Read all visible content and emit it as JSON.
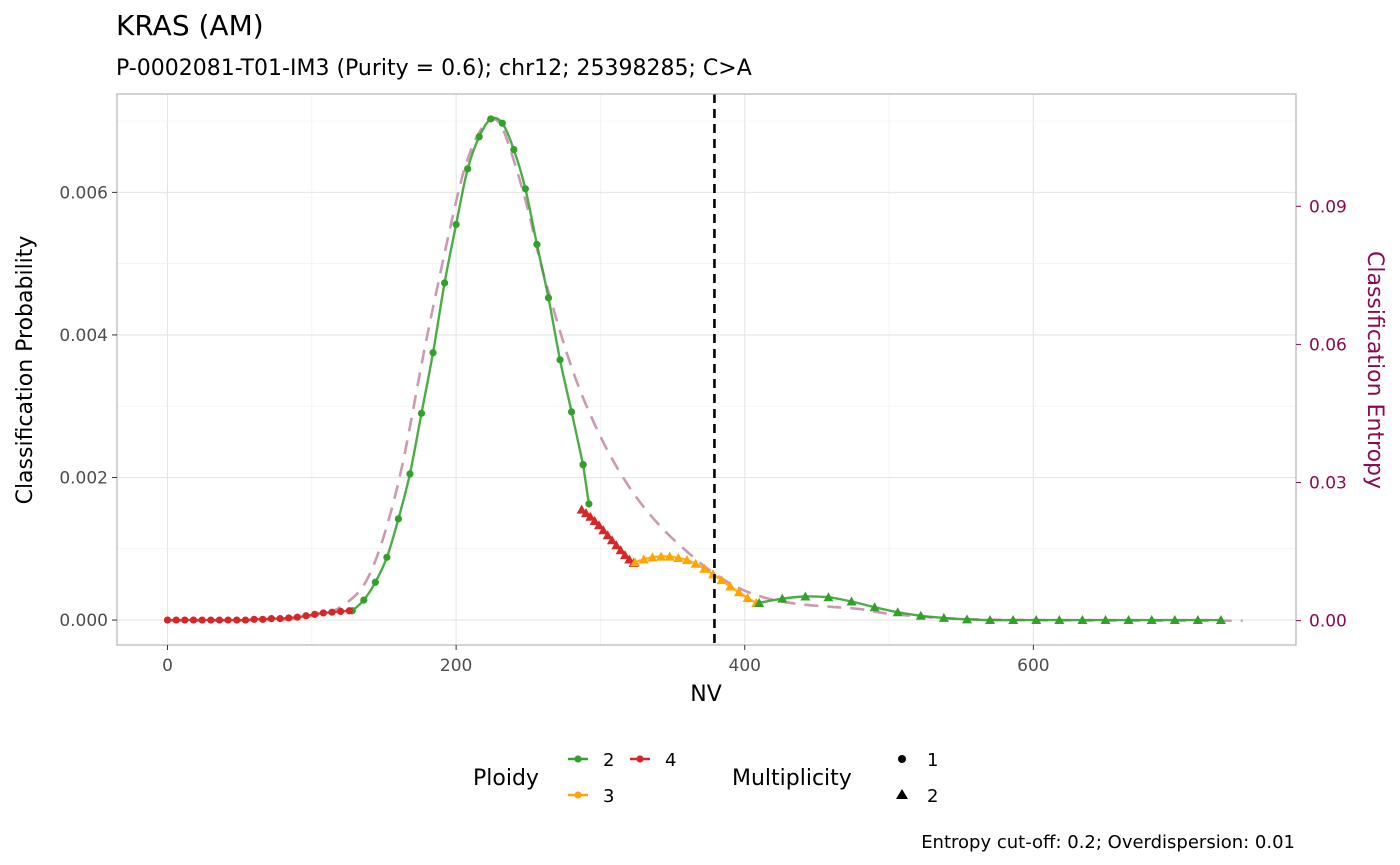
{
  "chart_data": {
    "type": "line",
    "title": "KRAS (AM)",
    "subtitle": "P-0002081-T01-IM3 (Purity = 0.6); chr12; 25398285; C>A",
    "xlabel": "NV",
    "ylabel": "Classification Probability",
    "y2label": "Classification Entropy",
    "caption": "Entropy cut-off: 0.2; Overdispersion: 0.01",
    "xlim": [
      -35,
      782
    ],
    "ylim": [
      -0.00035,
      0.00738
    ],
    "y2lim": [
      -0.0053,
      0.1144
    ],
    "x_ticks": [
      0,
      200,
      400,
      600
    ],
    "y_ticks": [
      0.0,
      0.002,
      0.004,
      0.006
    ],
    "y_tick_labels": [
      "0.000",
      "0.002",
      "0.004",
      "0.006"
    ],
    "y2_ticks": [
      0.0,
      0.03,
      0.06,
      0.09
    ],
    "y2_tick_labels": [
      "0.00",
      "0.03",
      "0.06",
      "0.09"
    ],
    "grid": true,
    "legend_position": "bottom",
    "cutoff_line": {
      "x": 379,
      "style": "dashed",
      "color": "#000000"
    },
    "colors": {
      "2": "#33a02c",
      "3": "#ffa500",
      "4": "#d62728",
      "entropy": "#cc99b3"
    },
    "legend": {
      "ploidy": {
        "title": "Ploidy",
        "items": [
          "2",
          "3",
          "4"
        ]
      },
      "multiplicity": {
        "title": "Multiplicity",
        "items": [
          "1",
          "2"
        ]
      }
    },
    "series": [
      {
        "name": "Ploidy 2, Multiplicity 1",
        "ploidy": "2",
        "multiplicity": "1",
        "shape": "circle",
        "x": [
          128,
          136,
          144,
          152,
          160,
          168,
          176,
          184,
          192,
          200,
          208,
          216,
          224,
          232,
          240,
          248,
          256,
          264,
          272,
          280,
          288
        ],
        "y": [
          0.00013,
          0.00028,
          0.00053,
          0.00088,
          0.00142,
          0.00205,
          0.0029,
          0.00375,
          0.00473,
          0.00555,
          0.00633,
          0.00678,
          0.00703,
          0.00697,
          0.0066,
          0.00605,
          0.00527,
          0.00452,
          0.00365,
          0.00292,
          0.00218
        ]
      },
      {
        "name": "Ploidy 2, Multiplicity 1 (tail)",
        "ploidy": "2",
        "multiplicity": "1",
        "shape": "circle",
        "x": [
          288,
          292
        ],
        "y": [
          0.00218,
          0.00163
        ]
      },
      {
        "name": "Ploidy 4, Multiplicity 1",
        "ploidy": "4",
        "multiplicity": "1",
        "shape": "circle",
        "x": [
          0,
          6,
          12,
          18,
          24,
          30,
          36,
          42,
          48,
          54,
          60,
          66,
          72,
          78,
          84,
          90,
          96,
          102,
          108,
          114,
          120,
          126
        ],
        "y": [
          0.0,
          0.0,
          0.0,
          0.0,
          0.0,
          0.0,
          0.0,
          0.0,
          0.0,
          0.0,
          1e-05,
          1e-05,
          2e-05,
          2e-05,
          3e-05,
          4e-05,
          6e-05,
          8e-05,
          0.0001,
          0.00011,
          0.00012,
          0.00013
        ]
      },
      {
        "name": "Ploidy 4, Multiplicity 2",
        "ploidy": "4",
        "multiplicity": "2",
        "shape": "triangle",
        "x": [
          287,
          290,
          293,
          296,
          299,
          302,
          305,
          308,
          311,
          314,
          317,
          320,
          323
        ],
        "y": [
          0.00155,
          0.0015,
          0.00145,
          0.00139,
          0.00133,
          0.00126,
          0.00119,
          0.00112,
          0.00105,
          0.00098,
          0.00091,
          0.00085,
          0.0008
        ]
      },
      {
        "name": "Ploidy 3, Multiplicity 2",
        "ploidy": "3",
        "multiplicity": "2",
        "shape": "triangle",
        "x": [
          324,
          330,
          336,
          342,
          348,
          354,
          360,
          366,
          372,
          378,
          384,
          390,
          396,
          402,
          408
        ],
        "y": [
          0.00081,
          0.00085,
          0.00088,
          0.00089,
          0.00089,
          0.00087,
          0.00084,
          0.00079,
          0.00072,
          0.00064,
          0.00056,
          0.00047,
          0.00039,
          0.00031,
          0.00024
        ]
      },
      {
        "name": "Ploidy 2, Multiplicity 2",
        "ploidy": "2",
        "multiplicity": "2",
        "shape": "triangle",
        "x": [
          410,
          426,
          442,
          458,
          474,
          490,
          506,
          522,
          538,
          554,
          570,
          586,
          602,
          618,
          634,
          650,
          666,
          682,
          698,
          714,
          730
        ],
        "y": [
          0.00024,
          0.0003,
          0.00033,
          0.00032,
          0.00026,
          0.00018,
          0.00011,
          6e-05,
          3e-05,
          1e-05,
          0.0,
          0.0,
          0.0,
          0.0,
          0.0,
          0.0,
          0.0,
          0.0,
          0.0,
          0.0,
          0.0
        ]
      },
      {
        "name": "Classification Entropy",
        "axis": "y2",
        "style": "dashed",
        "x": [
          0,
          40,
          80,
          100,
          120,
          140,
          160,
          180,
          200,
          210,
          220,
          226,
          232,
          240,
          250,
          260,
          280,
          300,
          320,
          340,
          360,
          380,
          400,
          420,
          440,
          460,
          480,
          500,
          540,
          600,
          700,
          745
        ],
        "y": [
          0.0,
          0.0,
          0.0002,
          0.001,
          0.003,
          0.01,
          0.03,
          0.062,
          0.091,
          0.102,
          0.108,
          0.109,
          0.107,
          0.1,
          0.089,
          0.076,
          0.055,
          0.04,
          0.029,
          0.021,
          0.015,
          0.01,
          0.0065,
          0.0045,
          0.0035,
          0.003,
          0.0025,
          0.0015,
          0.0005,
          0.0001,
          0.0,
          0.0
        ]
      }
    ]
  }
}
